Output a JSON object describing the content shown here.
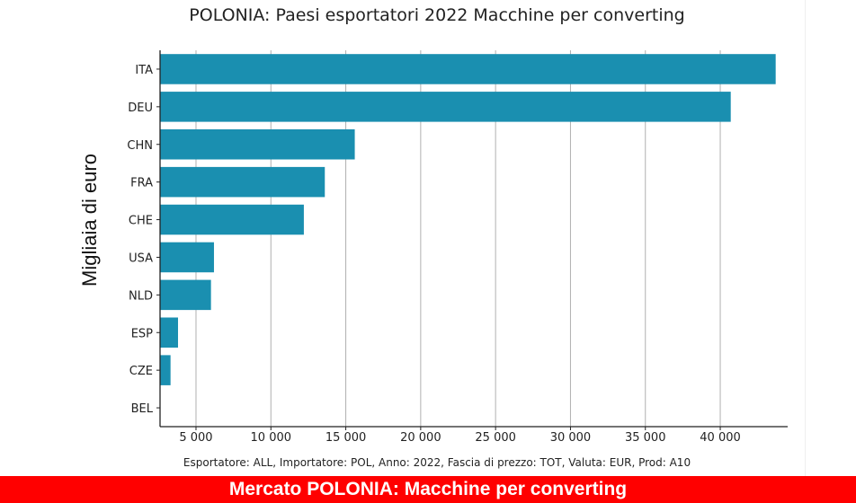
{
  "chart_data": {
    "type": "bar",
    "orientation": "horizontal",
    "title": "POLONIA: Paesi esportatori 2022 Macchine per converting",
    "ylabel": "Migliaia di euro",
    "xlabel": "",
    "categories": [
      "ITA",
      "DEU",
      "CHN",
      "FRA",
      "CHE",
      "USA",
      "NLD",
      "ESP",
      "CZE",
      "BEL"
    ],
    "values": [
      43700,
      40700,
      15600,
      13600,
      12200,
      6200,
      6000,
      3800,
      3300,
      200
    ],
    "xlim": [
      2600,
      44500
    ],
    "xticks": [
      5000,
      10000,
      15000,
      20000,
      25000,
      30000,
      35000,
      40000
    ],
    "xtick_labels": [
      "5 000",
      "10 000",
      "15 000",
      "20 000",
      "25 000",
      "30 000",
      "35 000",
      "40 000"
    ],
    "grid": "vertical",
    "bar_color": "#1a8fb0",
    "grid_color": "#b0b0b0",
    "footnote": "Esportatore: ALL, Importatore: POL, Anno: 2022, Fascia di prezzo: TOT, Valuta: EUR, Prod: A10"
  },
  "banner": {
    "text": "Mercato POLONIA: Macchine per converting",
    "color": "#ff0000"
  }
}
